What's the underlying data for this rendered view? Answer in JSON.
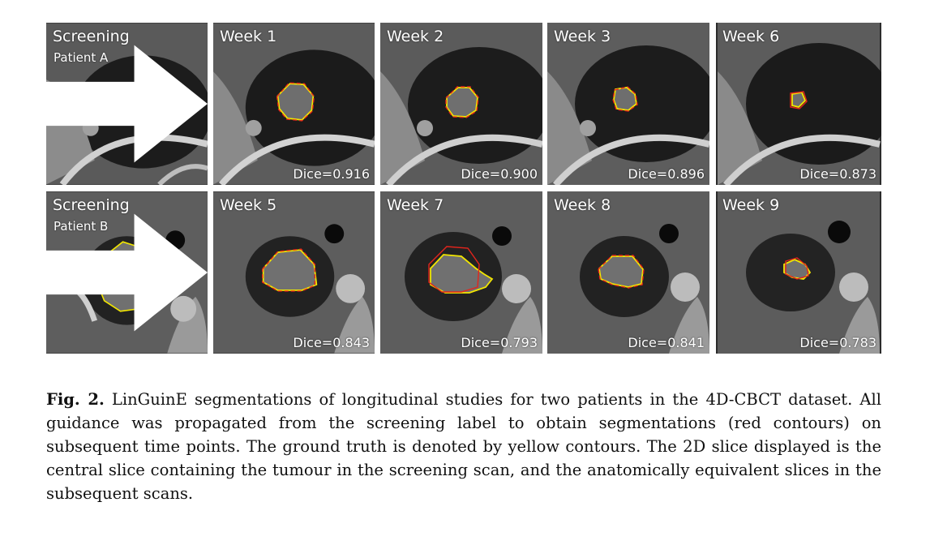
{
  "figure": {
    "rows": [
      {
        "patient_label": "Patient A",
        "panels": [
          {
            "title": "Screening",
            "subtitle": "Patient A",
            "dice": ""
          },
          {
            "title": "Week 1",
            "dice": "Dice=0.916"
          },
          {
            "title": "Week 2",
            "dice": "Dice=0.900"
          },
          {
            "title": "Week 3",
            "dice": "Dice=0.896"
          },
          {
            "title": "Week 6",
            "dice": "Dice=0.873"
          }
        ]
      },
      {
        "patient_label": "Patient B",
        "panels": [
          {
            "title": "Screening",
            "subtitle": "Patient B",
            "dice": ""
          },
          {
            "title": "Week 5",
            "dice": "Dice=0.843"
          },
          {
            "title": "Week 7",
            "dice": "Dice=0.793"
          },
          {
            "title": "Week 8",
            "dice": "Dice=0.841"
          },
          {
            "title": "Week 9",
            "dice": "Dice=0.783"
          }
        ]
      }
    ],
    "colors": {
      "ground_truth": "#f2e600",
      "prediction": "#e3241c"
    }
  },
  "caption": {
    "label": "Fig. 2.",
    "text": "LinGuinE segmentations of longitudinal studies for two patients in the 4D-CBCT dataset. All guidance was propagated from the screening label to obtain segmentations (red contours) on subsequent time points. The ground truth is denoted by yellow contours. The 2D slice displayed is the central slice containing the tumour in the screening scan, and the anatomically equivalent slices in the subsequent scans."
  }
}
